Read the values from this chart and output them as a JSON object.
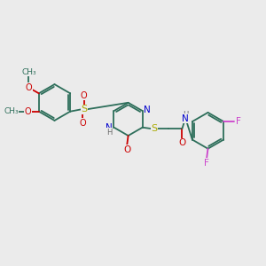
{
  "background_color": "#ebebeb",
  "bond_color": "#2d6e5a",
  "N_color": "#0000cc",
  "O_color": "#cc0000",
  "S_color": "#aaaa00",
  "F_color": "#cc44cc",
  "H_color": "#666666",
  "figsize": [
    3.0,
    3.0
  ],
  "dpi": 100,
  "xlim": [
    0,
    10
  ],
  "ylim": [
    0,
    10
  ]
}
